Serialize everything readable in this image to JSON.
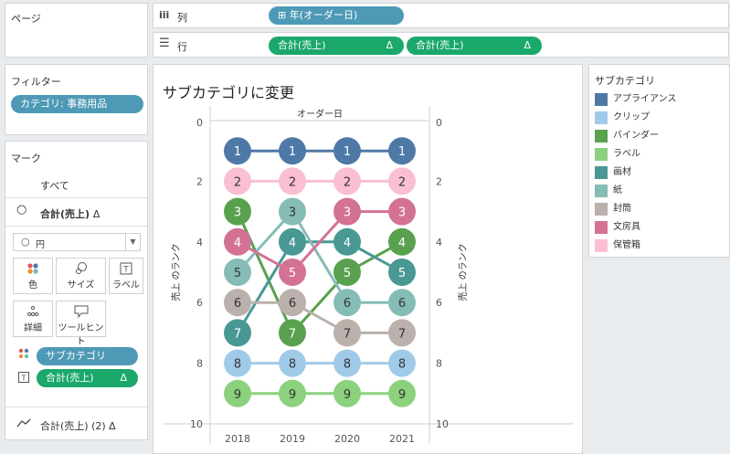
{
  "pages": {
    "title": "ページ"
  },
  "columns_shelf": {
    "label": "列",
    "pills": [
      {
        "label": "⊞ 年(オーダー日)"
      }
    ]
  },
  "rows_shelf": {
    "label": "行",
    "pills": [
      {
        "label": "合計(売上)",
        "delta": "Δ"
      },
      {
        "label": "合計(売上)",
        "delta": "Δ"
      }
    ]
  },
  "filters": {
    "title": "フィルター",
    "pill": "カテゴリ: 事務用品"
  },
  "marks": {
    "title": "マーク",
    "all_label": "すべて",
    "measure_label": "合計(売上)",
    "measure_delta": "Δ",
    "mark_type": "円",
    "buttons": {
      "color": "色",
      "size": "サイズ",
      "label": "ラベル",
      "detail": "詳細",
      "tooltip": "ツールヒント"
    },
    "fields": [
      {
        "label": "サブカテゴリ"
      },
      {
        "label": "合計(売上)",
        "delta": "Δ"
      }
    ],
    "footer_label": "合計(売上) (2)",
    "footer_delta": "Δ"
  },
  "legend": {
    "title": "サブカテゴリ",
    "items": [
      {
        "name": "アプライアンス",
        "color": "#4e79a7"
      },
      {
        "name": "クリップ",
        "color": "#a0cbe8"
      },
      {
        "name": "バインダー",
        "color": "#59a14f"
      },
      {
        "name": "ラベル",
        "color": "#8cd17d"
      },
      {
        "name": "画材",
        "color": "#499894"
      },
      {
        "name": "紙",
        "color": "#86bcb6"
      },
      {
        "name": "封筒",
        "color": "#bab0ac"
      },
      {
        "name": "文房具",
        "color": "#d37295"
      },
      {
        "name": "保管箱",
        "color": "#fabfd2"
      }
    ]
  },
  "chart_data": {
    "type": "line",
    "title": "サブカテゴリに変更",
    "header": "オーダー日",
    "x": [
      "2018",
      "2019",
      "2020",
      "2021"
    ],
    "ylabel": "売上 のランク",
    "ylim": [
      0,
      10
    ],
    "y_reversed": true,
    "y_ticks": [
      "0",
      "2",
      "4",
      "6",
      "8",
      "10"
    ],
    "series": [
      {
        "name": "アプライアンス",
        "color": "#4e79a7",
        "values": [
          1,
          1,
          1,
          1
        ]
      },
      {
        "name": "クリップ",
        "color": "#a0cbe8",
        "values": [
          8,
          8,
          8,
          8
        ]
      },
      {
        "name": "バインダー",
        "color": "#59a14f",
        "values": [
          3,
          7,
          5,
          4
        ]
      },
      {
        "name": "ラベル",
        "color": "#8cd17d",
        "values": [
          9,
          9,
          9,
          9
        ]
      },
      {
        "name": "画材",
        "color": "#499894",
        "values": [
          7,
          4,
          4,
          5
        ]
      },
      {
        "name": "紙",
        "color": "#86bcb6",
        "values": [
          5,
          3,
          6,
          6
        ]
      },
      {
        "name": "封筒",
        "color": "#bab0ac",
        "values": [
          6,
          6,
          7,
          7
        ]
      },
      {
        "name": "文房具",
        "color": "#d37295",
        "values": [
          4,
          5,
          3,
          3
        ]
      },
      {
        "name": "保管箱",
        "color": "#fabfd2",
        "values": [
          2,
          2,
          2,
          2
        ]
      }
    ]
  }
}
